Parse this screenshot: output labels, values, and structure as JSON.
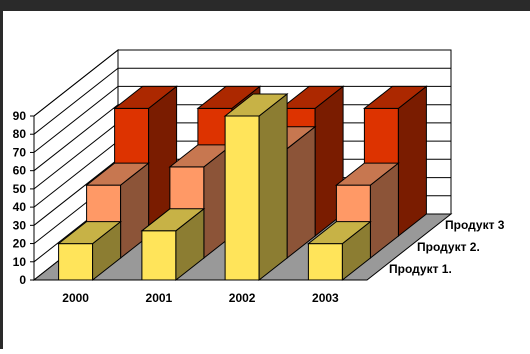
{
  "chart_data": {
    "type": "bar",
    "style": "3d-column",
    "categories": [
      "2000",
      "2001",
      "2002",
      "2003"
    ],
    "series": [
      {
        "name": "Продукт 1.",
        "values": [
          20,
          27,
          90,
          20
        ],
        "color": "#ffe45a"
      },
      {
        "name": "Продукт 2.",
        "values": [
          40,
          50,
          60,
          40
        ],
        "color": "#ff9966"
      },
      {
        "name": "Продукт 3",
        "values": [
          70,
          70,
          70,
          70
        ],
        "color": "#dd3300"
      }
    ],
    "title": "",
    "xlabel": "",
    "ylabel": "",
    "ylim": [
      0,
      90
    ],
    "yticks": [
      "0",
      "10",
      "20",
      "30",
      "40",
      "50",
      "60",
      "70",
      "80",
      "90"
    ],
    "grid": true,
    "legend": "depth-axis-right",
    "floor_color": "#999999",
    "wall_color": "#ffffff",
    "backdrop_color": "#2a2a2a"
  }
}
